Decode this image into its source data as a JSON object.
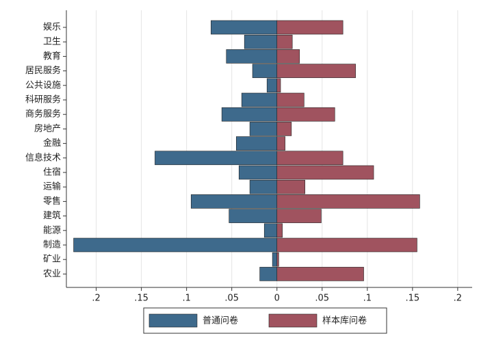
{
  "chart_data": {
    "type": "bar",
    "orientation": "horizontal",
    "categories": [
      "娱乐",
      "卫生",
      "教育",
      "居民服务",
      "公共设施",
      "科研服务",
      "商务服务",
      "房地产",
      "金融",
      "信息技术",
      "住宿",
      "运输",
      "零售",
      "建筑",
      "能源",
      "制造",
      "矿业",
      "农业"
    ],
    "series": [
      {
        "name": "普通问卷",
        "color": "#3e6a8c",
        "values": [
          -0.073,
          -0.036,
          -0.056,
          -0.027,
          -0.011,
          -0.039,
          -0.061,
          -0.03,
          -0.045,
          -0.135,
          -0.042,
          -0.03,
          -0.095,
          -0.053,
          -0.014,
          -0.225,
          -0.005,
          -0.019
        ]
      },
      {
        "name": "样本库问卷",
        "color": "#a0535f",
        "values": [
          0.073,
          0.017,
          0.025,
          0.087,
          0.004,
          0.03,
          0.064,
          0.016,
          0.009,
          0.073,
          0.107,
          0.031,
          0.158,
          0.049,
          0.006,
          0.155,
          0.002,
          0.096
        ]
      }
    ],
    "xlim": [
      -0.233,
      0.216
    ],
    "xticks": [
      {
        "value": -0.2,
        "label": ".2"
      },
      {
        "value": -0.15,
        "label": ".15"
      },
      {
        "value": -0.1,
        "label": ".1"
      },
      {
        "value": -0.05,
        "label": ".05"
      },
      0,
      {
        "value": 0.05,
        "label": ".05"
      },
      {
        "value": 0.1,
        "label": ".1"
      },
      {
        "value": 0.15,
        "label": ".15"
      },
      {
        "value": 0.2,
        "label": ".2"
      }
    ],
    "grid": true,
    "legend": "bottom"
  }
}
